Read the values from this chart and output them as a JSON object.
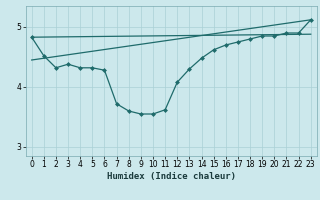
{
  "xlabel": "Humidex (Indice chaleur)",
  "background_color": "#cce8ec",
  "grid_color": "#aad0d6",
  "line_color": "#1f6b6b",
  "ylim": [
    2.85,
    5.35
  ],
  "xlim": [
    -0.5,
    23.5
  ],
  "yticks": [
    3,
    4,
    5
  ],
  "xticks": [
    0,
    1,
    2,
    3,
    4,
    5,
    6,
    7,
    8,
    9,
    10,
    11,
    12,
    13,
    14,
    15,
    16,
    17,
    18,
    19,
    20,
    21,
    22,
    23
  ],
  "trend1_x": [
    0,
    23
  ],
  "trend1_y": [
    4.83,
    4.88
  ],
  "trend2_x": [
    0,
    23
  ],
  "trend2_y": [
    4.45,
    5.12
  ],
  "curve_x": [
    0,
    1,
    2,
    3,
    4,
    5,
    6,
    7,
    8,
    9,
    10,
    11,
    12,
    13,
    14,
    15,
    16,
    17,
    18,
    19,
    20,
    21,
    22,
    23
  ],
  "curve_y": [
    4.83,
    4.52,
    4.32,
    4.38,
    4.32,
    4.32,
    4.28,
    3.72,
    3.6,
    3.55,
    3.55,
    3.62,
    4.08,
    4.3,
    4.48,
    4.62,
    4.7,
    4.75,
    4.8,
    4.85,
    4.85,
    4.9,
    4.9,
    5.12
  ]
}
